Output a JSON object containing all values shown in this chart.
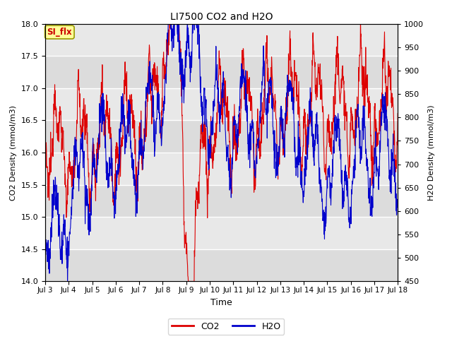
{
  "title": "LI7500 CO2 and H2O",
  "xlabel": "Time",
  "ylabel_left": "CO2 Density (mmol/m3)",
  "ylabel_right": "H2O Density (mmol/m3)",
  "ylim_left": [
    14.0,
    18.0
  ],
  "ylim_right": [
    450,
    1000
  ],
  "x_tick_labels": [
    "Jul 3",
    "Jul 4",
    "Jul 5",
    "Jul 6",
    "Jul 7",
    "Jul 8",
    "Jul 9",
    "Jul 10",
    "Jul 11",
    "Jul 12",
    "Jul 13",
    "Jul 14",
    "Jul 15",
    "Jul 16",
    "Jul 17",
    "Jul 18"
  ],
  "annotation_label": "SI_flx",
  "annotation_color": "#cc0000",
  "annotation_bg": "#ffff99",
  "plot_bg": "#e8e8e8",
  "stripe_color": "#d0d0d0",
  "co2_color": "#dd0000",
  "h2o_color": "#0000cc",
  "legend_co2": "CO2",
  "legend_h2o": "H2O",
  "n_days": 15,
  "pts_per_day": 96
}
